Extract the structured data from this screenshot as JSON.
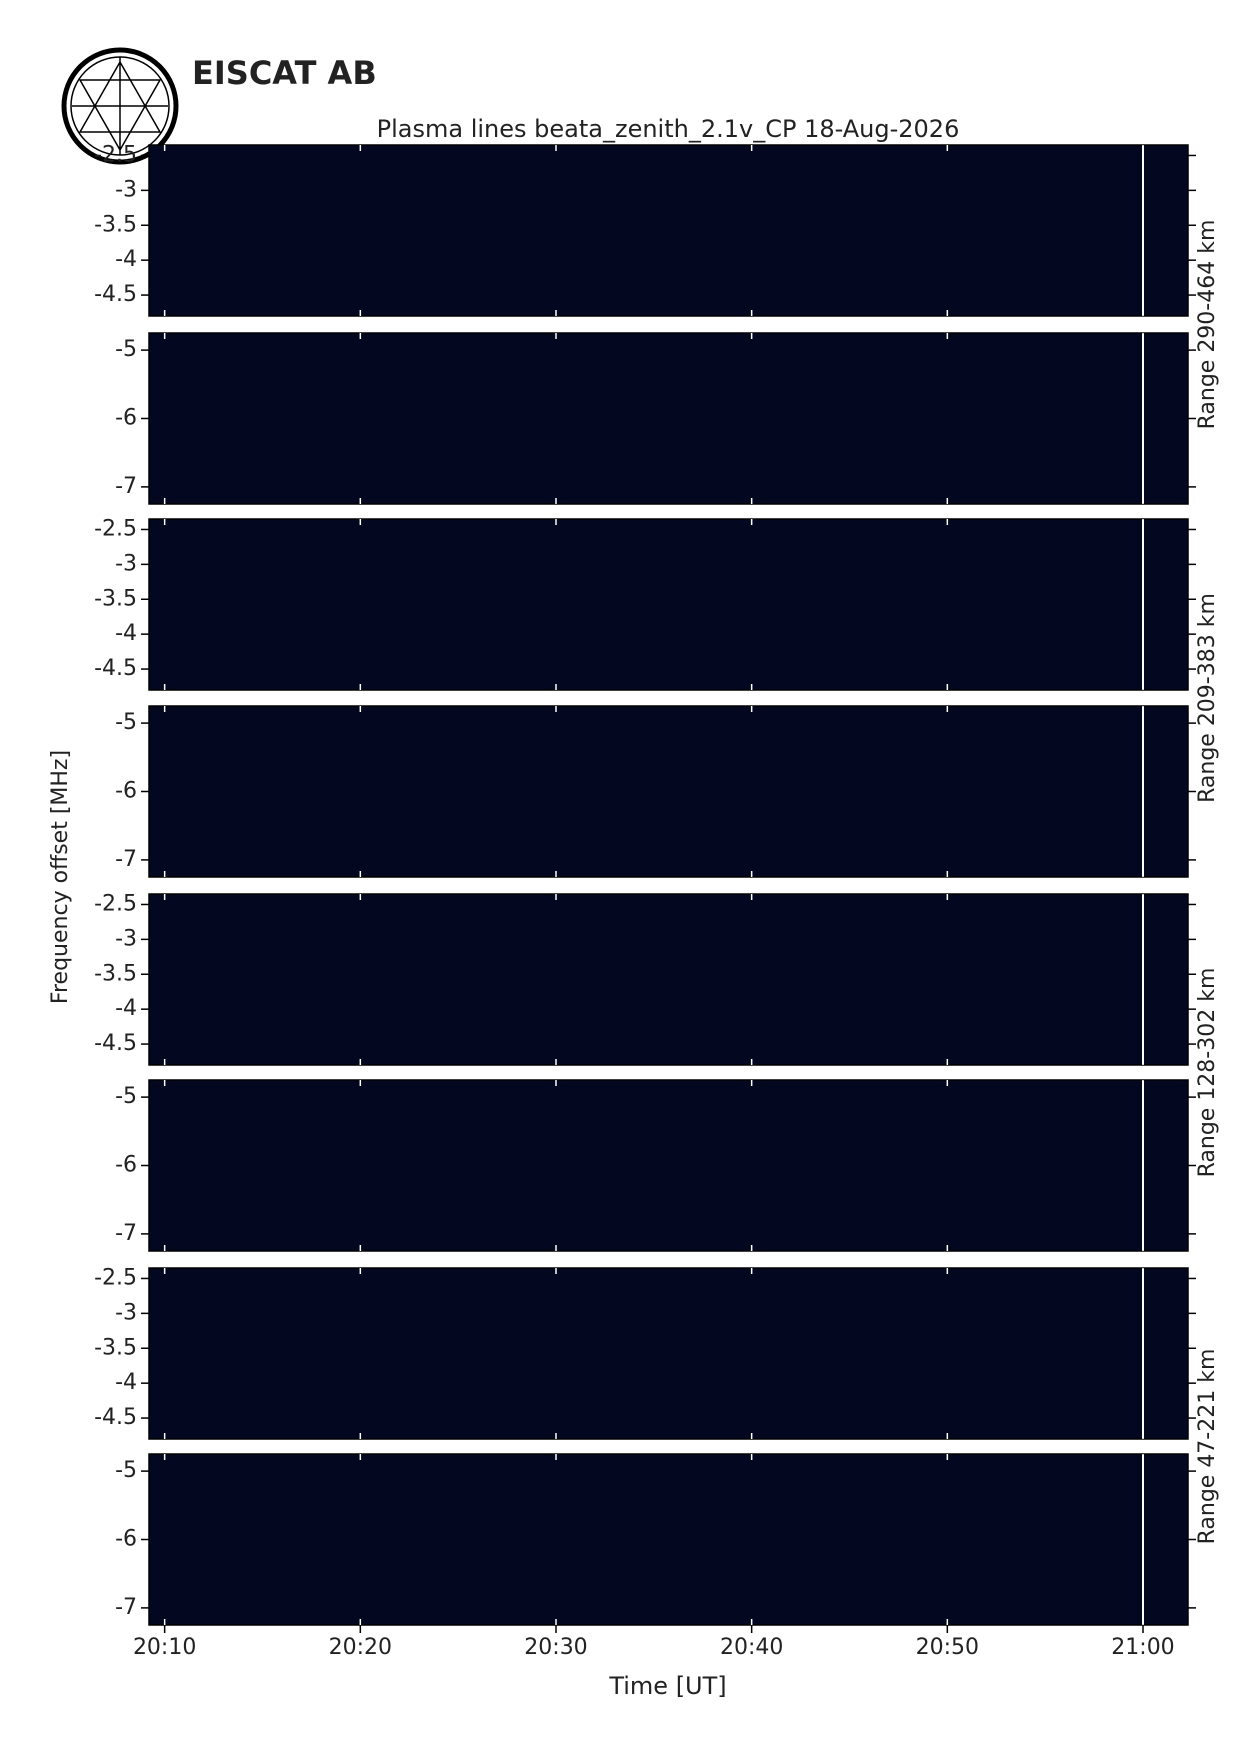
{
  "header": {
    "organization": "EISCAT AB"
  },
  "chart_data": {
    "type": "heatmap",
    "title": "Plasma lines   beata_zenith_2.1v_CP  18-Aug-2026",
    "xlabel": "Time [UT]",
    "ylabel": "Frequency offset [MHz]",
    "xlim": [
      1209.2,
      1262.3
    ],
    "xticks": [
      {
        "value": 1210,
        "label": "20:10"
      },
      {
        "value": 1220,
        "label": "20:20"
      },
      {
        "value": 1230,
        "label": "20:30"
      },
      {
        "value": 1240,
        "label": "20:40"
      },
      {
        "value": 1250,
        "label": "20:50"
      },
      {
        "value": 1260,
        "label": "21:00"
      }
    ],
    "marker_x": 1260,
    "ranges": [
      {
        "label": "Range 290-464 km",
        "panels": [
          {
            "ylim": [
              -4.8,
              -2.35
            ],
            "yticks": [
              -2.5,
              -3,
              -3.5,
              -4,
              -4.5
            ]
          },
          {
            "ylim": [
              -7.25,
              -4.75
            ],
            "yticks": [
              -5,
              -6,
              -7
            ]
          }
        ]
      },
      {
        "label": "Range 209-383 km",
        "panels": [
          {
            "ylim": [
              -4.8,
              -2.35
            ],
            "yticks": [
              -2.5,
              -3,
              -3.5,
              -4,
              -4.5
            ]
          },
          {
            "ylim": [
              -7.25,
              -4.75
            ],
            "yticks": [
              -5,
              -6,
              -7
            ]
          }
        ]
      },
      {
        "label": "Range 128-302 km",
        "panels": [
          {
            "ylim": [
              -4.8,
              -2.35
            ],
            "yticks": [
              -2.5,
              -3,
              -3.5,
              -4,
              -4.5
            ]
          },
          {
            "ylim": [
              -7.25,
              -4.75
            ],
            "yticks": [
              -5,
              -6,
              -7
            ]
          }
        ]
      },
      {
        "label": "Range 47-221 km",
        "panels": [
          {
            "ylim": [
              -4.8,
              -2.35
            ],
            "yticks": [
              -2.5,
              -3,
              -3.5,
              -4,
              -4.5
            ]
          },
          {
            "ylim": [
              -7.25,
              -4.75
            ],
            "yticks": [
              -5,
              -6,
              -7
            ]
          }
        ]
      }
    ]
  }
}
